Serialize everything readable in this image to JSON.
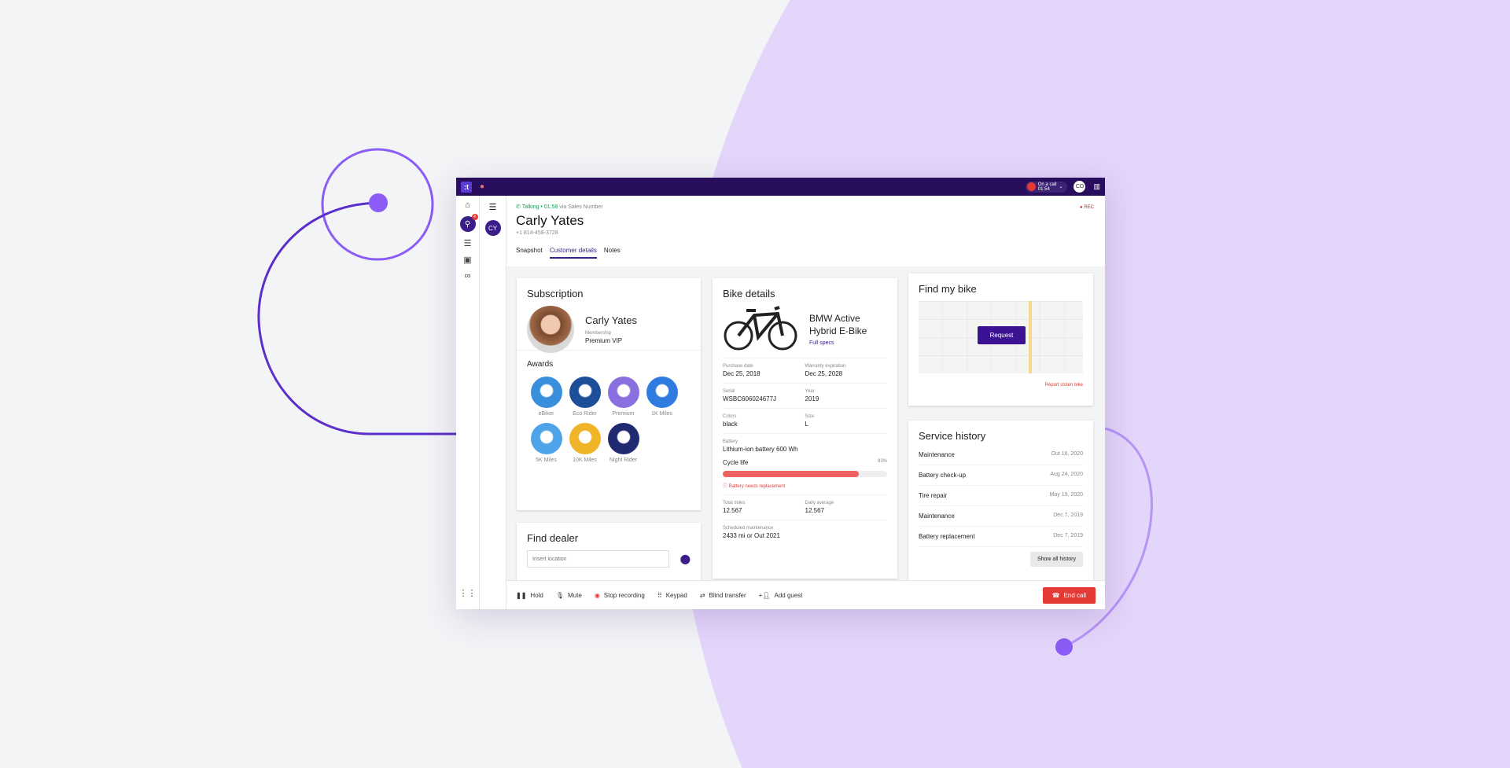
{
  "topbar": {
    "logo": ":t",
    "oncall_label": "On a call",
    "oncall_time": "01:54",
    "user_initials": "CO"
  },
  "rail": {
    "badge": "4",
    "contact_initials": "CY"
  },
  "header": {
    "status": "Talking • 01:58",
    "via": "via Sales Number",
    "name": "Carly Yates",
    "phone": "+1 814-458-3728",
    "rec": "REC",
    "tabs": [
      {
        "label": "Snapshot"
      },
      {
        "label": "Customer details",
        "active": true
      },
      {
        "label": "Notes"
      }
    ]
  },
  "subscription": {
    "title": "Subscription",
    "name": "Carly Yates",
    "membership_label": "Membership",
    "membership": "Premium VIP",
    "awards_title": "Awards",
    "awards": [
      {
        "label": "eBiker",
        "color": "#3a8fdc"
      },
      {
        "label": "Eco Rider",
        "color": "#1d4e9a"
      },
      {
        "label": "Premium",
        "color": "#8a6fe0"
      },
      {
        "label": "1K Miles",
        "color": "#2f7be0"
      },
      {
        "label": "5K Miles",
        "color": "#4fa3e8"
      },
      {
        "label": "10K Miles",
        "color": "#f0b429"
      },
      {
        "label": "Night Rider",
        "color": "#1f2a70"
      }
    ]
  },
  "dealer": {
    "title": "Find dealer",
    "placeholder": "Insert location"
  },
  "bike": {
    "title": "Bike details",
    "model": "BMW Active Hybrid E-Bike",
    "specs_link": "Full specs",
    "fields": [
      [
        {
          "label": "Purchase date",
          "value": "Dec 25, 2018"
        },
        {
          "label": "Warranty expiration",
          "value": "Dec 25, 2028"
        }
      ],
      [
        {
          "label": "Serial",
          "value": "WSBC606024677J"
        },
        {
          "label": "Year",
          "value": "2019"
        }
      ],
      [
        {
          "label": "Colors",
          "value": "black"
        },
        {
          "label": "Size",
          "value": "L"
        }
      ]
    ],
    "battery_label": "Battery",
    "battery": "Lithium-ion battery 600 Wh",
    "cycle_label": "Cycle life",
    "cycle_pct_text": "83%",
    "cycle_pct": 83,
    "cycle_bar_color": "#f06262",
    "warning": "Battery needs replacement",
    "miles": [
      {
        "label": "Total miles",
        "value": "12.567"
      },
      {
        "label": "Daily average",
        "value": "12.567"
      }
    ],
    "maint_label": "Scheduled maintenance",
    "maint": "2433 mi or Out 2021"
  },
  "findbike": {
    "title": "Find my bike",
    "request": "Request",
    "report": "Report stolen bike"
  },
  "service": {
    "title": "Service history",
    "items": [
      {
        "name": "Maintenance",
        "date": "Out 16, 2020"
      },
      {
        "name": "Battery check-up",
        "date": "Aug 24, 2020"
      },
      {
        "name": "Tire repair",
        "date": "May 19, 2020"
      },
      {
        "name": "Maintenance",
        "date": "Dec 7, 2019"
      },
      {
        "name": "Battery replacement",
        "date": "Dec 7, 2019"
      }
    ],
    "show_all": "Show all history"
  },
  "callbar": {
    "hold": "Hold",
    "mute": "Mute",
    "stop": "Stop recording",
    "keypad": "Keypad",
    "transfer": "Blind transfer",
    "guest": "Add guest",
    "end": "End call"
  },
  "colors": {
    "brand": "#2a0e5e",
    "accent": "#3b1e8a",
    "danger": "#e53935",
    "background_circle": "#e4d5fa"
  }
}
